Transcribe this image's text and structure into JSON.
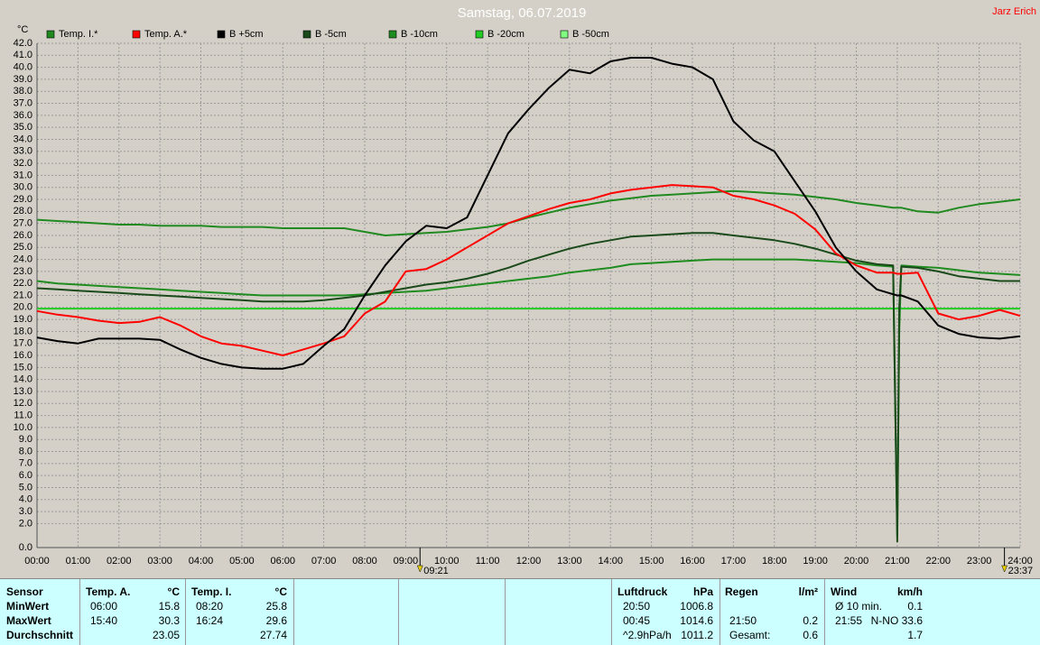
{
  "chart_data": {
    "type": "line",
    "title": "Samstag, 06.07.2019",
    "author": "Jarz Erich",
    "y_label": "°C",
    "x": [
      0,
      0.5,
      1,
      1.5,
      2,
      2.5,
      3,
      3.5,
      4,
      4.5,
      5,
      5.5,
      6,
      6.5,
      7,
      7.5,
      8,
      8.5,
      9,
      9.5,
      10,
      10.5,
      11,
      11.5,
      12,
      12.5,
      13,
      13.5,
      14,
      14.5,
      15,
      15.5,
      16,
      16.5,
      17,
      17.5,
      18,
      18.5,
      19,
      19.5,
      20,
      20.5,
      20.9,
      21,
      21.05,
      21.1,
      21.5,
      22,
      22.5,
      23,
      23.5,
      24
    ],
    "xlim": [
      0,
      24
    ],
    "xticks": [
      {
        "value": 0,
        "label": "00:00"
      },
      {
        "value": 1,
        "label": "01:00"
      },
      {
        "value": 2,
        "label": "02:00"
      },
      {
        "value": 3,
        "label": "03:00"
      },
      {
        "value": 4,
        "label": "04:00"
      },
      {
        "value": 5,
        "label": "05:00"
      },
      {
        "value": 6,
        "label": "06:00"
      },
      {
        "value": 7,
        "label": "07:00"
      },
      {
        "value": 8,
        "label": "08:00"
      },
      {
        "value": 9,
        "label": "09:00"
      },
      {
        "value": 10,
        "label": "10:00"
      },
      {
        "value": 11,
        "label": "11:00"
      },
      {
        "value": 12,
        "label": "12:00"
      },
      {
        "value": 13,
        "label": "13:00"
      },
      {
        "value": 14,
        "label": "14:00"
      },
      {
        "value": 15,
        "label": "15:00"
      },
      {
        "value": 16,
        "label": "16:00"
      },
      {
        "value": 17,
        "label": "17:00"
      },
      {
        "value": 18,
        "label": "18:00"
      },
      {
        "value": 19,
        "label": "19:00"
      },
      {
        "value": 20,
        "label": "20:00"
      },
      {
        "value": 21,
        "label": "21:00"
      },
      {
        "value": 22,
        "label": "22:00"
      },
      {
        "value": 23,
        "label": "23:00"
      },
      {
        "value": 24,
        "label": "24:00"
      }
    ],
    "ylim": [
      0,
      42
    ],
    "yticks": [
      {
        "value": 0,
        "label": "0.0"
      },
      {
        "value": 2,
        "label": "2.0"
      },
      {
        "value": 3,
        "label": "3.0"
      },
      {
        "value": 4,
        "label": "4.0"
      },
      {
        "value": 5,
        "label": "5.0"
      },
      {
        "value": 6,
        "label": "6.0"
      },
      {
        "value": 7,
        "label": "7.0"
      },
      {
        "value": 8,
        "label": "8.0"
      },
      {
        "value": 9,
        "label": "9.0"
      },
      {
        "value": 10,
        "label": "10.0"
      },
      {
        "value": 11,
        "label": "11.0"
      },
      {
        "value": 12,
        "label": "12.0"
      },
      {
        "value": 13,
        "label": "13.0"
      },
      {
        "value": 14,
        "label": "14.0"
      },
      {
        "value": 15,
        "label": "15.0"
      },
      {
        "value": 16,
        "label": "16.0"
      },
      {
        "value": 17,
        "label": "17.0"
      },
      {
        "value": 18,
        "label": "18.0"
      },
      {
        "value": 19,
        "label": "19.0"
      },
      {
        "value": 20,
        "label": "20.0"
      },
      {
        "value": 21,
        "label": "21.0"
      },
      {
        "value": 22,
        "label": "22.0"
      },
      {
        "value": 23,
        "label": "23.0"
      },
      {
        "value": 24,
        "label": "24.0"
      },
      {
        "value": 25,
        "label": "25.0"
      },
      {
        "value": 26,
        "label": "26.0"
      },
      {
        "value": 27,
        "label": "27.0"
      },
      {
        "value": 28,
        "label": "28.0"
      },
      {
        "value": 29,
        "label": "29.0"
      },
      {
        "value": 30,
        "label": "30.0"
      },
      {
        "value": 31,
        "label": "31.0"
      },
      {
        "value": 32,
        "label": "32.0"
      },
      {
        "value": 33,
        "label": "33.0"
      },
      {
        "value": 34,
        "label": "34.0"
      },
      {
        "value": 35,
        "label": "35.0"
      },
      {
        "value": 36,
        "label": "36.0"
      },
      {
        "value": 37,
        "label": "37.0"
      },
      {
        "value": 38,
        "label": "38.0"
      },
      {
        "value": 39,
        "label": "39.0"
      },
      {
        "value": 40,
        "label": "40.0"
      },
      {
        "value": 41,
        "label": "41.0"
      },
      {
        "value": 42,
        "label": "42.0"
      }
    ],
    "grid": true,
    "markers": [
      {
        "value": 9.35,
        "label": "09:21"
      },
      {
        "value": 23.617,
        "label": "23:37"
      }
    ],
    "series": [
      {
        "name": "Temp. I.*",
        "color": "#208a20",
        "values": [
          27.3,
          27.2,
          27.1,
          27.0,
          26.9,
          26.9,
          26.8,
          26.8,
          26.8,
          26.7,
          26.7,
          26.7,
          26.6,
          26.6,
          26.6,
          26.6,
          26.3,
          26.0,
          26.1,
          26.2,
          26.3,
          26.5,
          26.7,
          27.0,
          27.5,
          27.9,
          28.3,
          28.6,
          28.9,
          29.1,
          29.3,
          29.4,
          29.5,
          29.6,
          29.7,
          29.6,
          29.5,
          29.4,
          29.2,
          29.0,
          28.7,
          28.5,
          28.3,
          28.3,
          28.3,
          28.3,
          28.0,
          27.9,
          28.3,
          28.6,
          28.8,
          29.0
        ]
      },
      {
        "name": "Temp. A.*",
        "color": "#ff0000",
        "values": [
          19.7,
          19.4,
          19.2,
          18.9,
          18.7,
          18.8,
          19.2,
          18.5,
          17.6,
          17.0,
          16.8,
          16.4,
          16.0,
          16.5,
          17.0,
          17.6,
          19.5,
          20.5,
          23.0,
          23.2,
          24.0,
          25.0,
          26.0,
          27.0,
          27.6,
          28.2,
          28.7,
          29.0,
          29.5,
          29.8,
          30.0,
          30.2,
          30.1,
          30.0,
          29.3,
          29.0,
          28.5,
          27.8,
          26.5,
          24.5,
          23.5,
          22.9,
          22.9,
          22.8,
          22.8,
          22.8,
          22.9,
          19.5,
          19.0,
          19.3,
          19.8,
          19.3
        ]
      },
      {
        "name": "B +5cm",
        "color": "#000000",
        "values": [
          17.5,
          17.2,
          17.0,
          17.4,
          17.4,
          17.4,
          17.3,
          16.5,
          15.8,
          15.3,
          15.0,
          14.9,
          14.9,
          15.3,
          16.8,
          18.2,
          21.0,
          23.5,
          25.5,
          26.8,
          26.6,
          27.5,
          31.0,
          34.5,
          36.5,
          38.3,
          39.8,
          39.5,
          40.5,
          40.8,
          40.8,
          40.3,
          40.0,
          39.0,
          35.5,
          33.9,
          33.0,
          30.5,
          28.0,
          25.0,
          23.0,
          21.5,
          21.1,
          21.0,
          21.0,
          21.0,
          20.5,
          18.5,
          17.8,
          17.5,
          17.4,
          17.6
        ]
      },
      {
        "name": "B -5cm",
        "color": "#1a4a1a",
        "values": [
          21.6,
          21.5,
          21.4,
          21.3,
          21.2,
          21.1,
          21.0,
          20.9,
          20.8,
          20.7,
          20.6,
          20.5,
          20.5,
          20.5,
          20.6,
          20.8,
          21.0,
          21.3,
          21.6,
          21.9,
          22.1,
          22.4,
          22.8,
          23.3,
          23.9,
          24.4,
          24.9,
          25.3,
          25.6,
          25.9,
          26.0,
          26.1,
          26.2,
          26.2,
          26.0,
          25.8,
          25.6,
          25.3,
          24.9,
          24.4,
          23.9,
          23.6,
          23.5,
          0.5,
          20.0,
          23.4,
          23.3,
          23.0,
          22.6,
          22.4,
          22.2,
          22.2
        ]
      },
      {
        "name": "B -10cm",
        "color": "#1e8c1e",
        "values": [
          22.2,
          22.0,
          21.9,
          21.8,
          21.7,
          21.6,
          21.5,
          21.4,
          21.3,
          21.2,
          21.1,
          21.0,
          21.0,
          21.0,
          21.0,
          21.0,
          21.1,
          21.2,
          21.3,
          21.4,
          21.6,
          21.8,
          22.0,
          22.2,
          22.4,
          22.6,
          22.9,
          23.1,
          23.3,
          23.6,
          23.7,
          23.8,
          23.9,
          24.0,
          24.0,
          24.0,
          24.0,
          24.0,
          23.9,
          23.8,
          23.7,
          23.5,
          23.4,
          1.0,
          18.0,
          23.5,
          23.4,
          23.3,
          23.1,
          22.9,
          22.8,
          22.7
        ]
      },
      {
        "name": "B -20cm",
        "color": "#22cc22",
        "values": [
          19.9,
          19.9,
          19.9,
          19.9,
          19.9,
          19.9,
          19.9,
          19.9,
          19.9,
          19.9,
          19.9,
          19.9,
          19.9,
          19.9,
          19.9,
          19.9,
          19.9,
          19.9,
          19.9,
          19.9,
          19.9,
          19.9,
          19.9,
          19.9,
          19.9,
          19.9,
          19.9,
          19.9,
          19.9,
          19.9,
          19.9,
          19.9,
          19.9,
          19.9,
          19.9,
          19.9,
          19.9,
          19.9,
          19.9,
          19.9,
          19.9,
          19.9,
          19.9,
          19.9,
          19.9,
          19.9,
          19.9,
          19.9,
          19.9,
          19.9,
          19.9,
          19.9
        ]
      },
      {
        "name": "B -50cm",
        "color": "#80ff80",
        "values": [
          null,
          null,
          null,
          null,
          null,
          null,
          null,
          null,
          null,
          null,
          null,
          null,
          null,
          null,
          null,
          null,
          null,
          null,
          null,
          null,
          null,
          null,
          null,
          null,
          null,
          null,
          null,
          null,
          null,
          null,
          null,
          null,
          null,
          null,
          null,
          null,
          null,
          null,
          null,
          null,
          null,
          null,
          null,
          null,
          null,
          null,
          null,
          null,
          null,
          null,
          null,
          null
        ]
      }
    ]
  },
  "table": {
    "row_labels": [
      "Sensor",
      "MinWert",
      "MaxWert",
      "Durchschnitt"
    ],
    "blocks": [
      {
        "header": "Temp. A.",
        "unit": "°C",
        "rows": [
          {
            "time": "06:00",
            "value": "15.8"
          },
          {
            "time": "15:40",
            "value": "30.3"
          },
          {
            "value": "23.05"
          }
        ]
      },
      {
        "header": "Temp. I.",
        "unit": "°C",
        "rows": [
          {
            "time": "08:20",
            "value": "25.8"
          },
          {
            "time": "16:24",
            "value": "29.6"
          },
          {
            "value": "27.74"
          }
        ]
      },
      {
        "header": "Luftdruck",
        "unit": "hPa",
        "rows": [
          {
            "time": "20:50",
            "value": "1006.8"
          },
          {
            "time": "00:45",
            "value": "1014.6"
          },
          {
            "time": "^2.9hPa/h",
            "value": "1011.2"
          }
        ]
      },
      {
        "header": "Regen",
        "unit": "l/m²",
        "rows": [
          {},
          {
            "time": "21:50",
            "value": "0.2"
          },
          {
            "time": "Gesamt:",
            "value": "0.6"
          }
        ]
      },
      {
        "header": "Wind",
        "unit": "km/h",
        "rows": [
          {
            "time": "Ø 10 min.",
            "value": "0.1"
          },
          {
            "time": "21:55",
            "value": "N-NO 33.6"
          },
          {
            "value": "1.7"
          }
        ]
      }
    ]
  }
}
